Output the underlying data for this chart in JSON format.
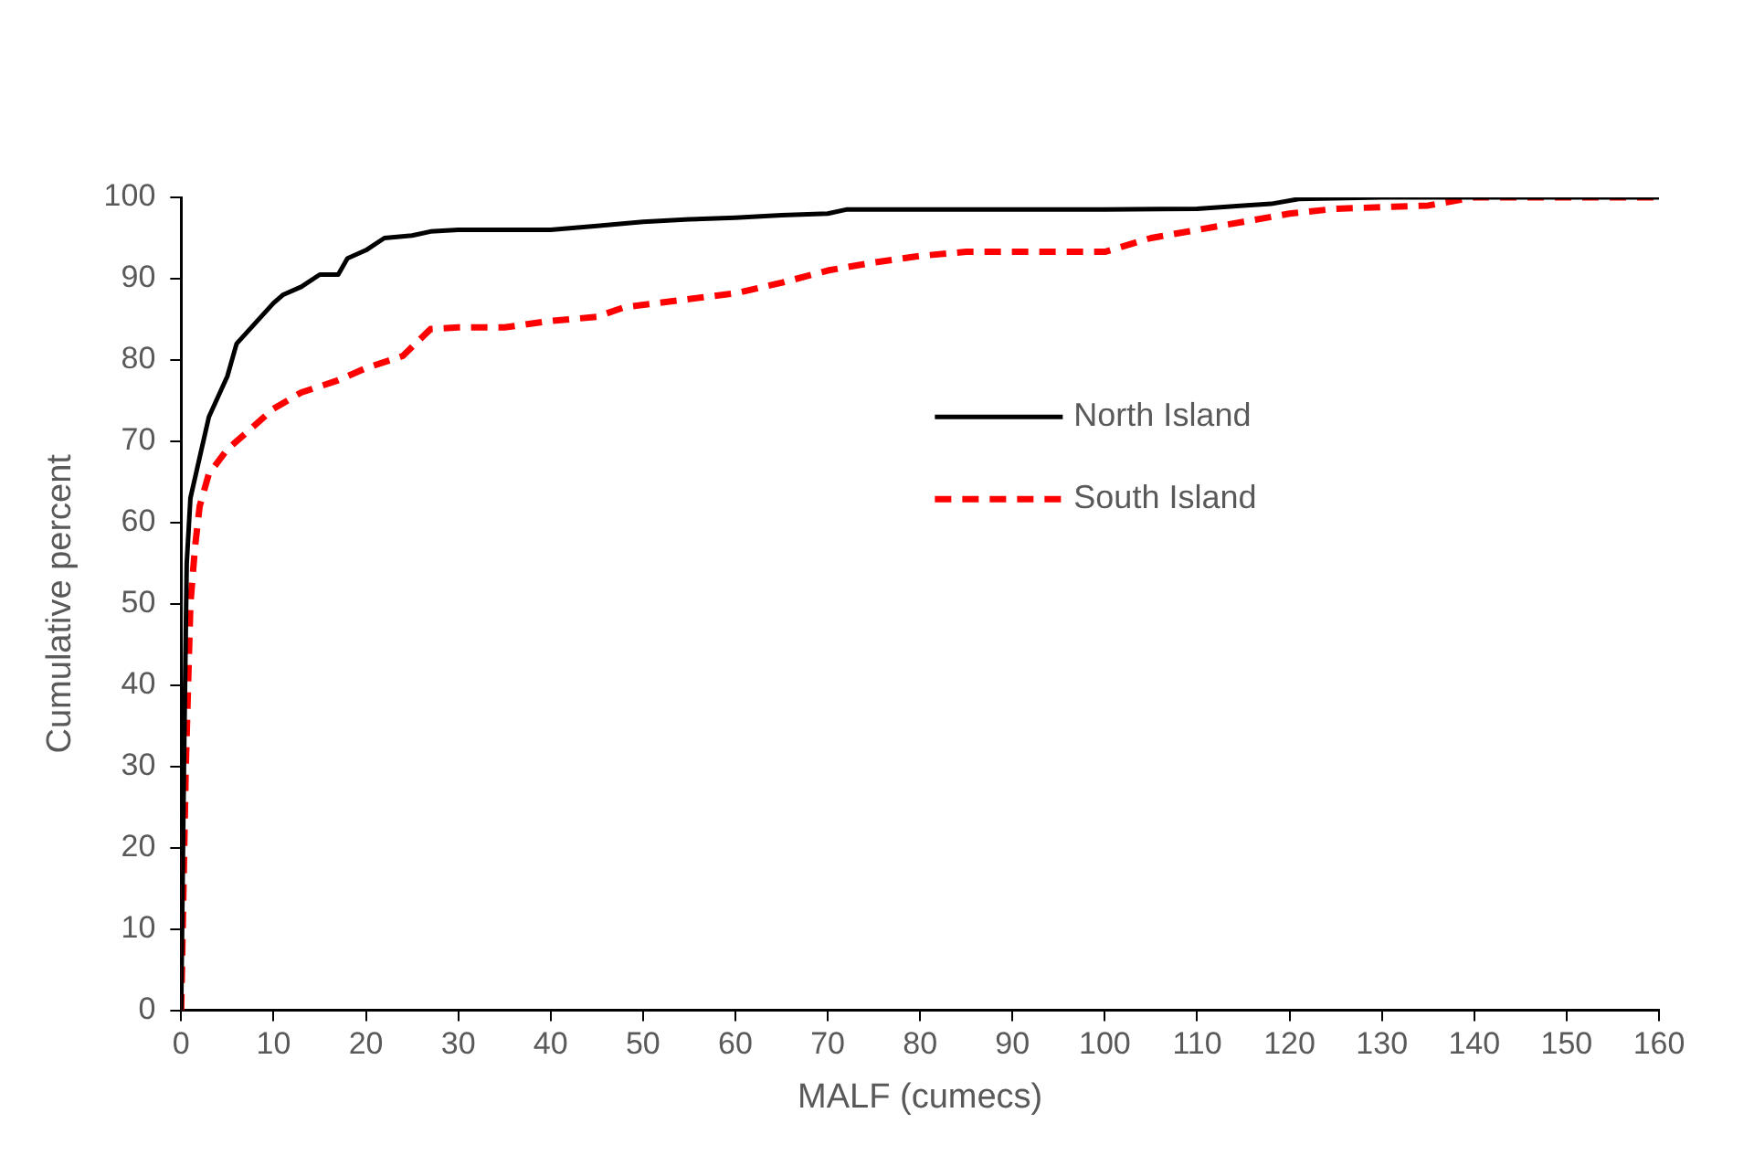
{
  "chart_data": {
    "type": "line",
    "xlabel": "MALF (cumecs)",
    "ylabel": "Cumulative percent",
    "xlim": [
      0,
      160
    ],
    "xticks": [
      0,
      10,
      20,
      30,
      40,
      50,
      60,
      70,
      80,
      90,
      100,
      110,
      120,
      130,
      140,
      150,
      160
    ],
    "ylim": [
      0,
      100
    ],
    "yticks": [
      0,
      10,
      20,
      30,
      40,
      50,
      60,
      70,
      80,
      90,
      100
    ],
    "grid": false,
    "legend": "right",
    "marker": "none",
    "series": [
      {
        "name": "North Island",
        "color": "#000000",
        "line_style": "solid",
        "x": [
          0,
          0.3,
          0.6,
          1,
          2,
          3,
          5,
          6,
          8,
          10,
          11,
          13,
          15,
          17,
          18,
          20,
          22,
          25,
          27,
          30,
          40,
          45,
          50,
          55,
          60,
          65,
          70,
          72,
          80,
          100,
          110,
          115,
          118,
          121,
          130,
          160
        ],
        "values": [
          0,
          30,
          55,
          63,
          68,
          73,
          78,
          82,
          84.5,
          87,
          88,
          89,
          90.5,
          90.5,
          92.5,
          93.5,
          95,
          95.3,
          95.8,
          96,
          96,
          96.5,
          97,
          97.3,
          97.5,
          97.8,
          98,
          98.5,
          98.5,
          98.5,
          98.6,
          99,
          99.2,
          99.8,
          100,
          100
        ]
      },
      {
        "name": "South Island",
        "color": "#ff0000",
        "line_style": "dashed",
        "x": [
          0,
          0.5,
          1,
          1.5,
          2,
          3,
          5,
          7,
          10,
          13,
          17,
          20,
          24,
          27,
          30,
          35,
          40,
          45,
          48,
          55,
          60,
          65,
          70,
          75,
          80,
          85,
          100,
          105,
          110,
          115,
          120,
          125,
          135,
          140,
          160
        ],
        "values": [
          0,
          30,
          50,
          57,
          62,
          66,
          69,
          71,
          74,
          76,
          77.5,
          79,
          80.5,
          83.8,
          84,
          84,
          84.8,
          85.3,
          86.5,
          87.5,
          88.2,
          89.5,
          91,
          92,
          92.8,
          93.3,
          93.3,
          95,
          96,
          97,
          98,
          98.6,
          99,
          100,
          100
        ]
      }
    ]
  }
}
